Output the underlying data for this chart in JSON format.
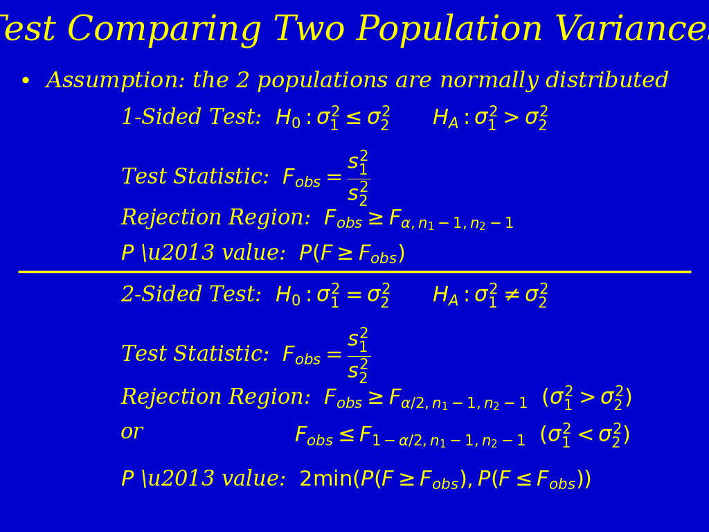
{
  "title": "Test Comparing Two Population Variances",
  "bg_color": "#0000CC",
  "title_color": "#FFFF00",
  "text_color": "#FFFF00",
  "title_fontsize": 36,
  "body_fontsize": 22,
  "math_fontsize": 22
}
